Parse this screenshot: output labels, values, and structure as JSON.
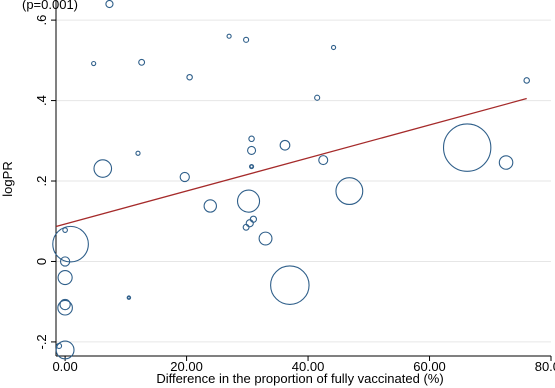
{
  "chart_data": {
    "type": "scatter",
    "top_label": "(p=0.001)",
    "xlabel": "Difference in the proportion of fully vaccinated (%)",
    "ylabel": "logPR",
    "xlim": [
      -1.5,
      80
    ],
    "ylim": [
      -0.235,
      0.65
    ],
    "grid": true,
    "x_ticks": [
      {
        "value": 0,
        "label": "0.00"
      },
      {
        "value": 20,
        "label": "20.00"
      },
      {
        "value": 40,
        "label": "40.00"
      },
      {
        "value": 60,
        "label": "60.00"
      },
      {
        "value": 80,
        "label": "80.00"
      }
    ],
    "y_ticks": [
      {
        "value": -0.2,
        "label": "-.2"
      },
      {
        "value": 0,
        "label": "0"
      },
      {
        "value": 0.2,
        "label": ".2"
      },
      {
        "value": 0.4,
        "label": ".4"
      },
      {
        "value": 0.6,
        "label": ".6"
      }
    ],
    "fit_line": {
      "x": [
        -1.5,
        76
      ],
      "y": [
        0.087,
        0.405
      ],
      "color": "#a52a2a"
    },
    "marker_color": "#2f5f8a",
    "points": [
      {
        "x": 7.3,
        "y": 0.64,
        "w": 1.2
      },
      {
        "x": 27.0,
        "y": 0.56,
        "w": 0.4
      },
      {
        "x": 29.8,
        "y": 0.551,
        "w": 0.6
      },
      {
        "x": 12.6,
        "y": 0.495,
        "w": 0.8
      },
      {
        "x": 4.7,
        "y": 0.492,
        "w": 0.4
      },
      {
        "x": 44.2,
        "y": 0.532,
        "w": 0.4
      },
      {
        "x": 20.5,
        "y": 0.458,
        "w": 0.7
      },
      {
        "x": 76.0,
        "y": 0.45,
        "w": 0.7
      },
      {
        "x": 41.5,
        "y": 0.407,
        "w": 0.6
      },
      {
        "x": 30.7,
        "y": 0.305,
        "w": 0.7
      },
      {
        "x": 30.7,
        "y": 0.276,
        "w": 1.5
      },
      {
        "x": 36.2,
        "y": 0.289,
        "w": 2.2
      },
      {
        "x": 12.0,
        "y": 0.269,
        "w": 0.4
      },
      {
        "x": 6.2,
        "y": 0.231,
        "w": 7.3
      },
      {
        "x": 30.7,
        "y": 0.236,
        "w": 0.3
      },
      {
        "x": 42.5,
        "y": 0.252,
        "w": 1.9
      },
      {
        "x": 19.7,
        "y": 0.21,
        "w": 2.0
      },
      {
        "x": 66.2,
        "y": 0.283,
        "w": 53
      },
      {
        "x": 72.6,
        "y": 0.246,
        "w": 4.3
      },
      {
        "x": 46.8,
        "y": 0.175,
        "w": 17
      },
      {
        "x": 30.2,
        "y": 0.15,
        "w": 11.5
      },
      {
        "x": 23.9,
        "y": 0.138,
        "w": 3.6
      },
      {
        "x": 31.0,
        "y": 0.105,
        "w": 0.9
      },
      {
        "x": 30.4,
        "y": 0.095,
        "w": 1.2
      },
      {
        "x": 29.8,
        "y": 0.085,
        "w": 0.8
      },
      {
        "x": 33.0,
        "y": 0.057,
        "w": 3.9
      },
      {
        "x": 0.0,
        "y": 0.078,
        "w": 0.5
      },
      {
        "x": 0.9,
        "y": 0.043,
        "w": 30
      },
      {
        "x": 0.0,
        "y": 0.0,
        "w": 2.0
      },
      {
        "x": 0.0,
        "y": -0.04,
        "w": 4.7
      },
      {
        "x": 0.0,
        "y": -0.107,
        "w": 2.5
      },
      {
        "x": 0.0,
        "y": -0.115,
        "w": 5.0
      },
      {
        "x": 37.0,
        "y": -0.059,
        "w": 35
      },
      {
        "x": 10.5,
        "y": -0.09,
        "w": 0.2
      },
      {
        "x": -1.0,
        "y": -0.21,
        "w": 0.6
      },
      {
        "x": 0.0,
        "y": -0.22,
        "w": 7.5
      }
    ]
  }
}
